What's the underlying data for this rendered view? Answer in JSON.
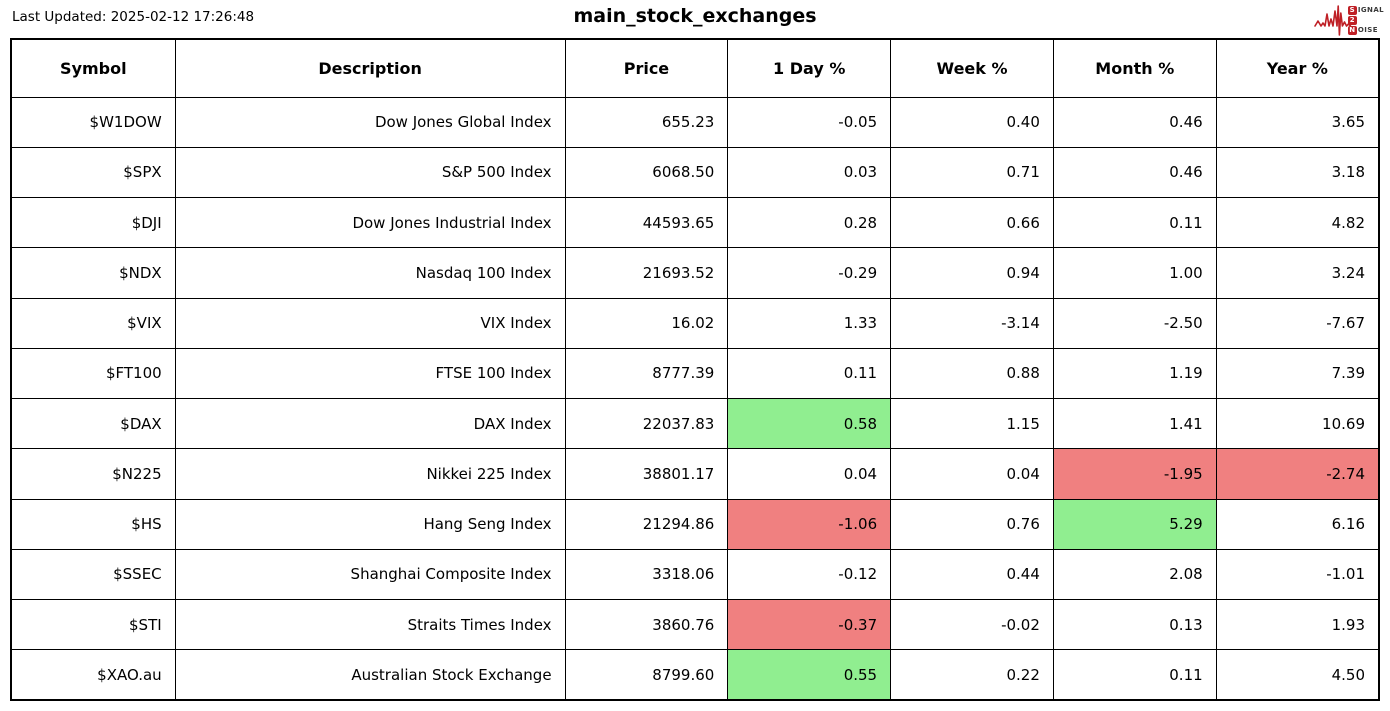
{
  "header": {
    "last_updated": "Last Updated: 2025-02-12 17:26:48",
    "title": "main_stock_exchanges"
  },
  "logo": {
    "signal_initial": "S",
    "signal_rest": "IGNAL",
    "middle": "2",
    "noise_initial": "N",
    "noise_rest": "OISE",
    "accent_color": "#bf2026"
  },
  "colors": {
    "green": "#90ee90",
    "red": "#f08080"
  },
  "chart_data": {
    "type": "table",
    "title": "main_stock_exchanges",
    "columns": [
      "Symbol",
      "Description",
      "Price",
      "1 Day %",
      "Week %",
      "Month %",
      "Year %"
    ],
    "column_keys": [
      "symbol",
      "description",
      "price",
      "day",
      "week",
      "month",
      "year"
    ],
    "rows": [
      {
        "cells": [
          "$W1DOW",
          "Dow Jones Global Index",
          "655.23",
          "-0.05",
          "0.40",
          "0.46",
          "3.65"
        ],
        "bg": [
          "",
          "",
          "",
          "",
          "",
          "",
          ""
        ]
      },
      {
        "cells": [
          "$SPX",
          "S&P 500 Index",
          "6068.50",
          "0.03",
          "0.71",
          "0.46",
          "3.18"
        ],
        "bg": [
          "",
          "",
          "",
          "",
          "",
          "",
          ""
        ]
      },
      {
        "cells": [
          "$DJI",
          "Dow Jones Industrial Index",
          "44593.65",
          "0.28",
          "0.66",
          "0.11",
          "4.82"
        ],
        "bg": [
          "",
          "",
          "",
          "",
          "",
          "",
          ""
        ]
      },
      {
        "cells": [
          "$NDX",
          "Nasdaq 100 Index",
          "21693.52",
          "-0.29",
          "0.94",
          "1.00",
          "3.24"
        ],
        "bg": [
          "",
          "",
          "",
          "",
          "",
          "",
          ""
        ]
      },
      {
        "cells": [
          "$VIX",
          "VIX Index",
          "16.02",
          "1.33",
          "-3.14",
          "-2.50",
          "-7.67"
        ],
        "bg": [
          "",
          "",
          "",
          "",
          "",
          "",
          ""
        ]
      },
      {
        "cells": [
          "$FT100",
          "FTSE 100 Index",
          "8777.39",
          "0.11",
          "0.88",
          "1.19",
          "7.39"
        ],
        "bg": [
          "",
          "",
          "",
          "",
          "",
          "",
          ""
        ]
      },
      {
        "cells": [
          "$DAX",
          "DAX Index",
          "22037.83",
          "0.58",
          "1.15",
          "1.41",
          "10.69"
        ],
        "bg": [
          "",
          "",
          "",
          "green",
          "",
          "",
          ""
        ]
      },
      {
        "cells": [
          "$N225",
          "Nikkei 225 Index",
          "38801.17",
          "0.04",
          "0.04",
          "-1.95",
          "-2.74"
        ],
        "bg": [
          "",
          "",
          "",
          "",
          "",
          "red",
          "red"
        ]
      },
      {
        "cells": [
          "$HS",
          "Hang Seng Index",
          "21294.86",
          "-1.06",
          "0.76",
          "5.29",
          "6.16"
        ],
        "bg": [
          "",
          "",
          "",
          "red",
          "",
          "green",
          ""
        ]
      },
      {
        "cells": [
          "$SSEC",
          "Shanghai Composite Index",
          "3318.06",
          "-0.12",
          "0.44",
          "2.08",
          "-1.01"
        ],
        "bg": [
          "",
          "",
          "",
          "",
          "",
          "",
          ""
        ]
      },
      {
        "cells": [
          "$STI",
          "Straits Times Index",
          "3860.76",
          "-0.37",
          "-0.02",
          "0.13",
          "1.93"
        ],
        "bg": [
          "",
          "",
          "",
          "red",
          "",
          "",
          ""
        ]
      },
      {
        "cells": [
          "$XAO.au",
          "Australian Stock Exchange",
          "8799.60",
          "0.55",
          "0.22",
          "0.11",
          "4.50"
        ],
        "bg": [
          "",
          "",
          "",
          "green",
          "",
          "",
          ""
        ]
      }
    ]
  }
}
